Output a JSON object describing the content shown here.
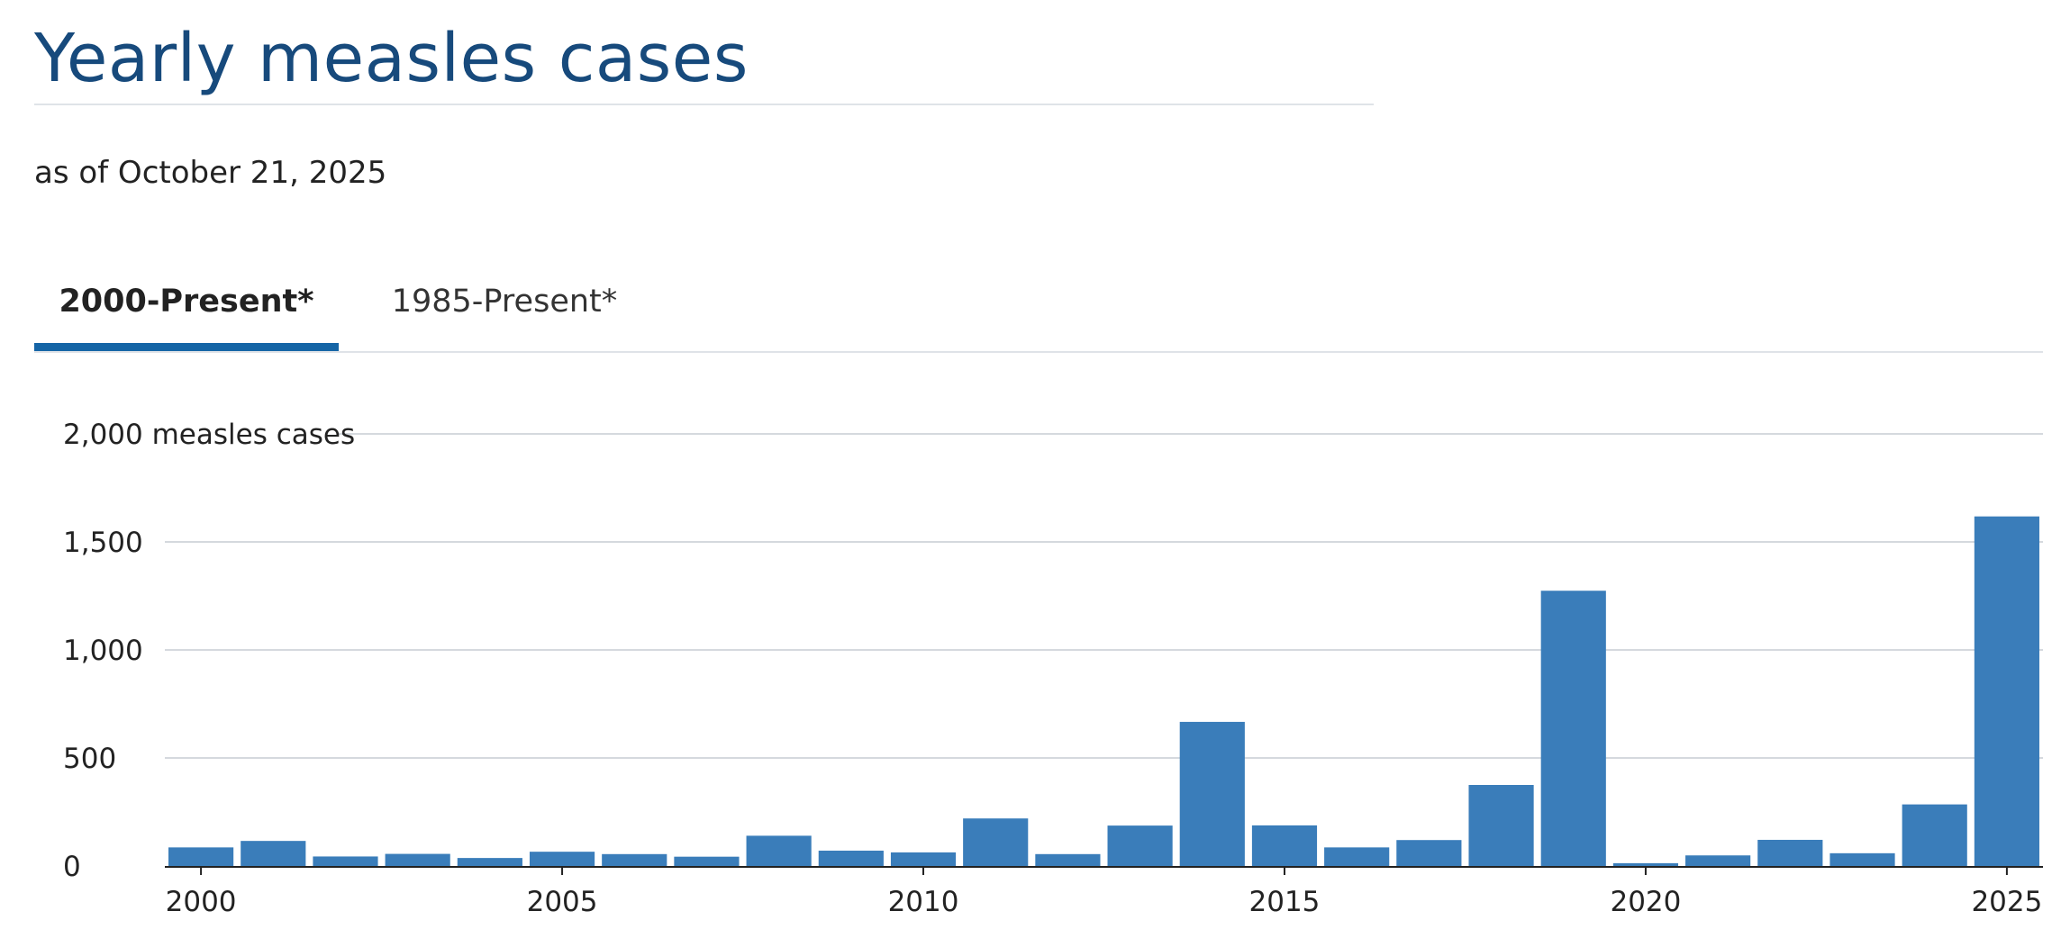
{
  "header": {
    "title": "Yearly measles cases",
    "subtitle": "as of October 21, 2025"
  },
  "tabs": [
    {
      "label": "2000-Present*",
      "active": true
    },
    {
      "label": "1985-Present*",
      "active": false
    }
  ],
  "colors": {
    "bar": "#3a7dba",
    "title": "#174a7c",
    "tab_underline": "#1565a6",
    "grid": "#d5d9de"
  },
  "chart_data": {
    "type": "bar",
    "title": "",
    "xlabel": "",
    "ylabel": "",
    "ylim": [
      0,
      2000
    ],
    "y_ticks": [
      {
        "value": 0,
        "label": "0"
      },
      {
        "value": 500,
        "label": "500"
      },
      {
        "value": 1000,
        "label": "1,000"
      },
      {
        "value": 1500,
        "label": "1,500"
      },
      {
        "value": 2000,
        "label": "2,000 measles cases"
      }
    ],
    "x_ticks": [
      2000,
      2005,
      2010,
      2015,
      2020,
      2025
    ],
    "categories": [
      2000,
      2001,
      2002,
      2003,
      2004,
      2005,
      2006,
      2007,
      2008,
      2009,
      2010,
      2011,
      2012,
      2013,
      2014,
      2015,
      2016,
      2017,
      2018,
      2019,
      2020,
      2021,
      2022,
      2023,
      2024,
      2025
    ],
    "values": [
      86,
      116,
      44,
      56,
      37,
      66,
      55,
      43,
      140,
      71,
      63,
      220,
      55,
      187,
      667,
      188,
      86,
      120,
      375,
      1274,
      13,
      49,
      121,
      59,
      285,
      1618
    ],
    "grid": true,
    "legend": "none"
  }
}
